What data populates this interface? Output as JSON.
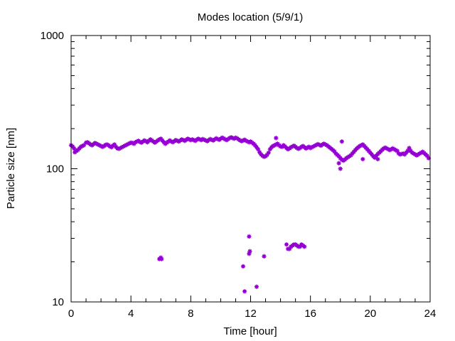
{
  "chart_data": {
    "type": "scatter",
    "title": "Modes location (5/9/1)",
    "xlabel": "Time [hour]",
    "ylabel": "Particle size [nm]",
    "xlim": [
      0,
      24
    ],
    "ylim": [
      10,
      1000
    ],
    "yscale": "log",
    "grid": false,
    "marker_color": "#9400d3",
    "xticks": [
      "0",
      "4",
      "8",
      "12",
      "16",
      "20",
      "24"
    ],
    "yticks": [
      "10",
      "100",
      "1000"
    ],
    "series": [
      {
        "values": [
          [
            0.0,
            150
          ],
          [
            0.1,
            147
          ],
          [
            0.2,
            142
          ],
          [
            0.25,
            133
          ],
          [
            0.35,
            136
          ],
          [
            0.45,
            138
          ],
          [
            0.55,
            142
          ],
          [
            0.65,
            146
          ],
          [
            0.75,
            148
          ],
          [
            0.85,
            150
          ],
          [
            1.0,
            157
          ],
          [
            1.1,
            158
          ],
          [
            1.2,
            155
          ],
          [
            1.3,
            152
          ],
          [
            1.4,
            150
          ],
          [
            1.5,
            153
          ],
          [
            1.6,
            156
          ],
          [
            1.7,
            154
          ],
          [
            1.8,
            152
          ],
          [
            1.9,
            150
          ],
          [
            2.0,
            148
          ],
          [
            2.1,
            146
          ],
          [
            2.2,
            148
          ],
          [
            2.3,
            151
          ],
          [
            2.4,
            152
          ],
          [
            2.5,
            150
          ],
          [
            2.6,
            147
          ],
          [
            2.7,
            145
          ],
          [
            2.8,
            149
          ],
          [
            2.9,
            152
          ],
          [
            3.0,
            146
          ],
          [
            3.1,
            142
          ],
          [
            3.2,
            141
          ],
          [
            3.3,
            143
          ],
          [
            3.4,
            145
          ],
          [
            3.5,
            147
          ],
          [
            3.6,
            149
          ],
          [
            3.7,
            151
          ],
          [
            3.8,
            153
          ],
          [
            3.9,
            155
          ],
          [
            4.0,
            157
          ],
          [
            4.1,
            156
          ],
          [
            4.2,
            154
          ],
          [
            4.3,
            158
          ],
          [
            4.4,
            160
          ],
          [
            4.5,
            162
          ],
          [
            4.6,
            159
          ],
          [
            4.7,
            157
          ],
          [
            4.8,
            160
          ],
          [
            4.9,
            163
          ],
          [
            5.0,
            161
          ],
          [
            5.1,
            158
          ],
          [
            5.2,
            162
          ],
          [
            5.3,
            166
          ],
          [
            5.4,
            163
          ],
          [
            5.5,
            160
          ],
          [
            5.6,
            157
          ],
          [
            5.7,
            160
          ],
          [
            5.8,
            163
          ],
          [
            5.9,
            166
          ],
          [
            6.0,
            168
          ],
          [
            6.1,
            163
          ],
          [
            6.2,
            158
          ],
          [
            6.3,
            154
          ],
          [
            6.4,
            157
          ],
          [
            6.5,
            160
          ],
          [
            6.6,
            163
          ],
          [
            6.7,
            160
          ],
          [
            6.8,
            158
          ],
          [
            6.9,
            161
          ],
          [
            7.0,
            164
          ],
          [
            7.1,
            162
          ],
          [
            7.2,
            160
          ],
          [
            7.3,
            163
          ],
          [
            7.4,
            166
          ],
          [
            7.5,
            164
          ],
          [
            7.6,
            162
          ],
          [
            7.7,
            165
          ],
          [
            7.8,
            168
          ],
          [
            7.9,
            166
          ],
          [
            8.0,
            164
          ],
          [
            8.1,
            166
          ],
          [
            8.2,
            164
          ],
          [
            8.3,
            162
          ],
          [
            8.4,
            165
          ],
          [
            8.5,
            168
          ],
          [
            8.6,
            166
          ],
          [
            8.7,
            164
          ],
          [
            8.8,
            167
          ],
          [
            8.9,
            165
          ],
          [
            9.0,
            163
          ],
          [
            9.1,
            161
          ],
          [
            9.2,
            164
          ],
          [
            9.3,
            167
          ],
          [
            9.4,
            165
          ],
          [
            9.5,
            163
          ],
          [
            9.6,
            166
          ],
          [
            9.7,
            169
          ],
          [
            9.8,
            167
          ],
          [
            9.9,
            165
          ],
          [
            10.0,
            168
          ],
          [
            10.1,
            171
          ],
          [
            10.2,
            169
          ],
          [
            10.3,
            166
          ],
          [
            10.4,
            164
          ],
          [
            10.5,
            167
          ],
          [
            10.6,
            170
          ],
          [
            10.7,
            172
          ],
          [
            10.8,
            170
          ],
          [
            10.9,
            168
          ],
          [
            11.0,
            171
          ],
          [
            11.1,
            169
          ],
          [
            11.2,
            166
          ],
          [
            11.3,
            163
          ],
          [
            11.4,
            161
          ],
          [
            11.5,
            163
          ],
          [
            11.6,
            165
          ],
          [
            11.7,
            162
          ],
          [
            11.8,
            160
          ],
          [
            11.9,
            158
          ],
          [
            12.0,
            160
          ],
          [
            12.1,
            157
          ],
          [
            12.2,
            154
          ],
          [
            12.3,
            150
          ],
          [
            12.4,
            145
          ],
          [
            12.5,
            140
          ],
          [
            12.6,
            133
          ],
          [
            12.7,
            128
          ],
          [
            12.8,
            125
          ],
          [
            12.9,
            123
          ],
          [
            13.0,
            124
          ],
          [
            13.1,
            127
          ],
          [
            13.2,
            132
          ],
          [
            13.3,
            140
          ],
          [
            13.4,
            145
          ],
          [
            13.5,
            148
          ],
          [
            13.6,
            150
          ],
          [
            13.7,
            152
          ],
          [
            13.8,
            154
          ],
          [
            13.9,
            150
          ],
          [
            14.0,
            147
          ],
          [
            14.1,
            146
          ],
          [
            14.2,
            150
          ],
          [
            14.3,
            147
          ],
          [
            14.4,
            143
          ],
          [
            14.5,
            140
          ],
          [
            14.6,
            142
          ],
          [
            14.7,
            145
          ],
          [
            14.8,
            147
          ],
          [
            14.9,
            149
          ],
          [
            15.0,
            146
          ],
          [
            15.1,
            143
          ],
          [
            15.2,
            141
          ],
          [
            15.3,
            143
          ],
          [
            15.4,
            146
          ],
          [
            15.5,
            148
          ],
          [
            15.6,
            145
          ],
          [
            15.7,
            142
          ],
          [
            15.8,
            144
          ],
          [
            15.9,
            146
          ],
          [
            16.0,
            143
          ],
          [
            16.1,
            145
          ],
          [
            16.2,
            147
          ],
          [
            16.3,
            149
          ],
          [
            16.4,
            151
          ],
          [
            16.5,
            153
          ],
          [
            16.6,
            151
          ],
          [
            16.7,
            149
          ],
          [
            16.8,
            152
          ],
          [
            16.9,
            154
          ],
          [
            17.0,
            152
          ],
          [
            17.1,
            150
          ],
          [
            17.2,
            147
          ],
          [
            17.3,
            144
          ],
          [
            17.4,
            141
          ],
          [
            17.5,
            138
          ],
          [
            17.6,
            135
          ],
          [
            17.7,
            130
          ],
          [
            17.8,
            127
          ],
          [
            17.9,
            124
          ],
          [
            18.0,
            120
          ],
          [
            18.1,
            117
          ],
          [
            18.2,
            115
          ],
          [
            18.3,
            117
          ],
          [
            18.4,
            120
          ],
          [
            18.5,
            122
          ],
          [
            18.6,
            124
          ],
          [
            18.7,
            126
          ],
          [
            18.8,
            130
          ],
          [
            18.9,
            134
          ],
          [
            19.0,
            138
          ],
          [
            19.1,
            142
          ],
          [
            19.2,
            145
          ],
          [
            19.3,
            148
          ],
          [
            19.4,
            150
          ],
          [
            19.5,
            152
          ],
          [
            19.6,
            148
          ],
          [
            19.7,
            144
          ],
          [
            19.8,
            140
          ],
          [
            19.9,
            136
          ],
          [
            20.0,
            132
          ],
          [
            20.1,
            128
          ],
          [
            20.2,
            124
          ],
          [
            20.3,
            121
          ],
          [
            20.4,
            125
          ],
          [
            20.5,
            129
          ],
          [
            20.6,
            132
          ],
          [
            20.7,
            135
          ],
          [
            20.8,
            139
          ],
          [
            20.9,
            142
          ],
          [
            21.0,
            144
          ],
          [
            21.1,
            142
          ],
          [
            21.2,
            140
          ],
          [
            21.3,
            138
          ],
          [
            21.4,
            140
          ],
          [
            21.5,
            142
          ],
          [
            21.6,
            140
          ],
          [
            21.7,
            138
          ],
          [
            21.8,
            136
          ],
          [
            21.9,
            130
          ],
          [
            22.0,
            128
          ],
          [
            22.1,
            129
          ],
          [
            22.2,
            130
          ],
          [
            22.3,
            128
          ],
          [
            22.4,
            132
          ],
          [
            22.5,
            136
          ],
          [
            22.6,
            140
          ],
          [
            22.7,
            136
          ],
          [
            22.8,
            132
          ],
          [
            22.9,
            130
          ],
          [
            23.0,
            128
          ],
          [
            23.1,
            126
          ],
          [
            23.2,
            128
          ],
          [
            23.3,
            130
          ],
          [
            23.4,
            132
          ],
          [
            23.5,
            134
          ],
          [
            23.6,
            131
          ],
          [
            23.7,
            128
          ],
          [
            23.8,
            125
          ],
          [
            23.9,
            120
          ],
          [
            13.7,
            170
          ],
          [
            17.9,
            110
          ],
          [
            18.0,
            100
          ],
          [
            18.1,
            160
          ],
          [
            19.5,
            118
          ],
          [
            20.5,
            118
          ],
          [
            22.6,
            143
          ]
        ]
      },
      {
        "values": [
          [
            5.9,
            21
          ],
          [
            6.0,
            21.5
          ],
          [
            6.05,
            21
          ],
          [
            11.5,
            18.5
          ],
          [
            11.6,
            12
          ],
          [
            11.9,
            23
          ],
          [
            11.95,
            24
          ],
          [
            11.9,
            31
          ],
          [
            12.4,
            13
          ],
          [
            12.9,
            22
          ],
          [
            14.4,
            27
          ],
          [
            14.5,
            25
          ],
          [
            14.6,
            25
          ],
          [
            14.7,
            26
          ],
          [
            14.8,
            26.5
          ],
          [
            14.9,
            27
          ],
          [
            15.0,
            27
          ],
          [
            15.1,
            26.5
          ],
          [
            15.2,
            26
          ],
          [
            15.3,
            26
          ],
          [
            15.4,
            27
          ],
          [
            15.5,
            26.5
          ],
          [
            15.6,
            26
          ]
        ]
      }
    ]
  }
}
